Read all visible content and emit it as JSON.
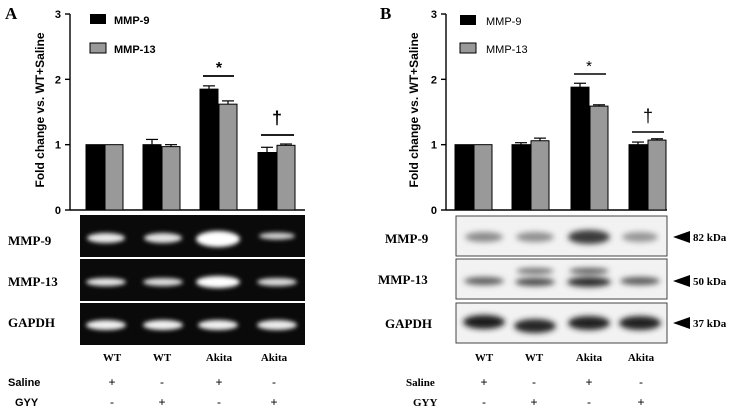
{
  "panels": [
    {
      "letter": "A",
      "ylabel": "Fold change vs. WT+Saline",
      "legend": [
        "MMP-9",
        "MMP-13"
      ],
      "blots": [
        "MMP-9",
        "MMP-13",
        "GAPDH"
      ],
      "kda": [],
      "groups": [
        "WT",
        "WT",
        "Akita",
        "Akita"
      ],
      "treatments": [
        {
          "label": "Saline",
          "values": [
            "+",
            "-",
            "+",
            "-"
          ]
        },
        {
          "label": "GYY",
          "values": [
            "-",
            "+",
            "-",
            "+"
          ]
        }
      ],
      "significance": [
        {
          "group": 2,
          "symbol": "*"
        },
        {
          "group": 3,
          "symbol": "†"
        }
      ]
    },
    {
      "letter": "B",
      "ylabel": "Fold change vs. WT+Saline",
      "legend": [
        "MMP-9",
        "MMP-13"
      ],
      "blots": [
        "MMP-9",
        "MMP-13",
        "GAPDH"
      ],
      "kda": [
        "82 kDa",
        "50 kDa",
        "37 kDa"
      ],
      "groups": [
        "WT",
        "WT",
        "Akita",
        "Akita"
      ],
      "treatments": [
        {
          "label": "Saline",
          "values": [
            "+",
            "-",
            "+",
            "-"
          ]
        },
        {
          "label": "GYY",
          "values": [
            "-",
            "+",
            "-",
            "+"
          ]
        }
      ],
      "significance": [
        {
          "group": 2,
          "symbol": "*"
        },
        {
          "group": 3,
          "symbol": "†"
        }
      ]
    }
  ],
  "chart_data": [
    {
      "type": "bar",
      "title": "",
      "xlabel": "",
      "ylabel": "Fold change vs. WT+Saline",
      "ylim": [
        0,
        3
      ],
      "yticks": [
        "0",
        "1",
        "2",
        "3"
      ],
      "categories": [
        "WT+Saline",
        "WT+GYY",
        "Akita+Saline",
        "Akita+GYY"
      ],
      "series": [
        {
          "name": "MMP-9",
          "color": "#000000",
          "values": [
            1.0,
            1.0,
            1.85,
            0.88
          ],
          "errors": [
            0.0,
            0.08,
            0.05,
            0.08
          ]
        },
        {
          "name": "MMP-13",
          "color": "#999999",
          "values": [
            1.0,
            0.97,
            1.62,
            0.99
          ],
          "errors": [
            0.0,
            0.03,
            0.05,
            0.02
          ]
        }
      ],
      "legend_position": "top-left"
    },
    {
      "type": "bar",
      "title": "",
      "xlabel": "",
      "ylabel": "Fold change vs. WT+Saline",
      "ylim": [
        0,
        3
      ],
      "yticks": [
        "0",
        "1",
        "2",
        "3"
      ],
      "categories": [
        "WT+Saline",
        "WT+GYY",
        "Akita+Saline",
        "Akita+GYY"
      ],
      "series": [
        {
          "name": "MMP-9",
          "color": "#000000",
          "values": [
            1.0,
            1.0,
            1.88,
            1.0
          ],
          "errors": [
            0.0,
            0.03,
            0.06,
            0.04
          ]
        },
        {
          "name": "MMP-13",
          "color": "#999999",
          "values": [
            1.0,
            1.06,
            1.59,
            1.07
          ],
          "errors": [
            0.0,
            0.04,
            0.02,
            0.02
          ]
        }
      ],
      "legend_position": "top-left"
    }
  ]
}
